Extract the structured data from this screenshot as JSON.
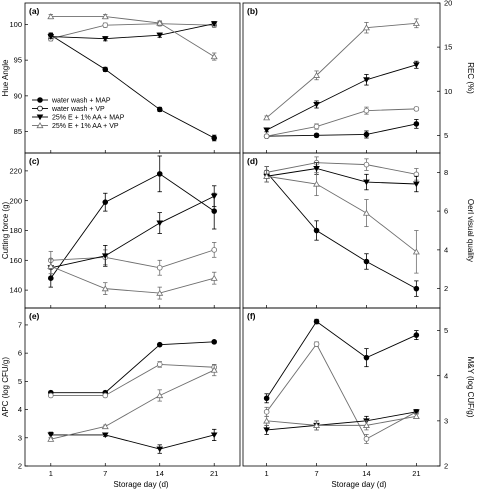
{
  "colors": {
    "black": "#000000",
    "gray": "#6e6e6e",
    "frame": "#000000"
  },
  "legend": {
    "placement": "top-left of panel (a)",
    "entries": [
      {
        "label": "water wash + MAP",
        "marker": "circle-filled",
        "color": "#000000"
      },
      {
        "label": "water wash + VP",
        "marker": "circle-open",
        "color": "#000000"
      },
      {
        "label": "25% E + 1% AA + MAP",
        "marker": "triangle-down-filled",
        "color": "#000000"
      },
      {
        "label": "25% E + 1% AA + VP",
        "marker": "triangle-up-open",
        "color": "#6e6e6e"
      }
    ]
  },
  "xlabels": {
    "left": "Storage day (d)",
    "right": "Storage day (d)"
  },
  "chart_data": [
    {
      "panel": "(a)",
      "type": "line",
      "side": "left",
      "ylabel": "Hue Angle",
      "x": [
        1,
        7,
        14,
        21
      ],
      "ylim": [
        82,
        103
      ],
      "yticks": [
        85,
        90,
        95,
        100
      ],
      "series": [
        {
          "name": "water wash + MAP",
          "marker": "circle-filled",
          "color": "#000000",
          "values": [
            98.5,
            93.7,
            88.1,
            84.1
          ],
          "err": [
            0.3,
            0.3,
            0.3,
            0.4
          ]
        },
        {
          "name": "water wash + VP",
          "marker": "circle-open",
          "color": "#6e6e6e",
          "values": [
            98.0,
            99.9,
            100.1,
            99.9
          ],
          "err": [
            0.3,
            0.3,
            0.3,
            0.3
          ]
        },
        {
          "name": "25% E + 1% AA + MAP",
          "marker": "triangle-down-filled",
          "color": "#000000",
          "values": [
            98.3,
            98.0,
            98.5,
            100.1
          ],
          "err": [
            0.3,
            0.3,
            0.3,
            0.3
          ]
        },
        {
          "name": "25% E + 1% AA + VP",
          "marker": "triangle-up-open",
          "color": "#6e6e6e",
          "values": [
            101.1,
            101.1,
            100.2,
            95.5
          ],
          "err": [
            0.3,
            0.3,
            0.3,
            0.5
          ]
        }
      ]
    },
    {
      "panel": "(b)",
      "type": "line",
      "side": "right",
      "ylabel": "REC (%)",
      "x": [
        1,
        7,
        14,
        21
      ],
      "ylim": [
        3,
        20
      ],
      "yticks": [
        5,
        10,
        15,
        20
      ],
      "series": [
        {
          "name": "water wash + MAP",
          "marker": "circle-filled",
          "color": "#000000",
          "values": [
            4.9,
            5.0,
            5.1,
            6.3
          ],
          "err": [
            0.1,
            0.2,
            0.4,
            0.5
          ]
        },
        {
          "name": "water wash + VP",
          "marker": "circle-open",
          "color": "#6e6e6e",
          "values": [
            4.9,
            6.0,
            7.8,
            8.0
          ],
          "err": [
            0.1,
            0.3,
            0.4,
            0.2
          ]
        },
        {
          "name": "25% E + 1% AA + MAP",
          "marker": "triangle-down-filled",
          "color": "#000000",
          "values": [
            5.6,
            8.5,
            11.3,
            13.0
          ],
          "err": [
            0.2,
            0.4,
            0.6,
            0.4
          ]
        },
        {
          "name": "25% E + 1% AA + VP",
          "marker": "triangle-up-open",
          "color": "#6e6e6e",
          "values": [
            7.0,
            11.8,
            17.2,
            17.7
          ],
          "err": [
            0.2,
            0.5,
            0.6,
            0.5
          ]
        }
      ]
    },
    {
      "panel": "(c)",
      "type": "line",
      "side": "left",
      "ylabel": "Cutting force (g)",
      "x": [
        1,
        7,
        14,
        21
      ],
      "ylim": [
        128,
        232
      ],
      "yticks": [
        140,
        160,
        180,
        200,
        220
      ],
      "series": [
        {
          "name": "water wash + MAP",
          "marker": "circle-filled",
          "color": "#000000",
          "values": [
            148,
            199,
            218,
            193
          ],
          "err": [
            6,
            6,
            12,
            12
          ]
        },
        {
          "name": "water wash + VP",
          "marker": "circle-open",
          "color": "#6e6e6e",
          "values": [
            160,
            162,
            155,
            167
          ],
          "err": [
            6,
            5,
            5,
            5
          ]
        },
        {
          "name": "25% E + 1% AA + MAP",
          "marker": "triangle-down-filled",
          "color": "#000000",
          "values": [
            155,
            163,
            185,
            203
          ],
          "err": [
            6,
            7,
            7,
            7
          ]
        },
        {
          "name": "25% E + 1% AA + VP",
          "marker": "triangle-up-open",
          "color": "#6e6e6e",
          "values": [
            156,
            141,
            138,
            148
          ],
          "err": [
            5,
            4,
            4,
            4
          ]
        }
      ]
    },
    {
      "panel": "(d)",
      "type": "line",
      "side": "right",
      "ylabel": "Oerl visual quality",
      "x": [
        1,
        7,
        14,
        21
      ],
      "ylim": [
        1,
        9
      ],
      "yticks": [
        2,
        4,
        6,
        8
      ],
      "series": [
        {
          "name": "water wash + MAP",
          "marker": "circle-filled",
          "color": "#000000",
          "values": [
            8.0,
            5.0,
            3.4,
            2.0
          ],
          "err": [
            0.3,
            0.5,
            0.4,
            0.4
          ]
        },
        {
          "name": "water wash + VP",
          "marker": "circle-open",
          "color": "#6e6e6e",
          "values": [
            8.0,
            8.5,
            8.4,
            7.9
          ],
          "err": [
            0.3,
            0.3,
            0.3,
            0.3
          ]
        },
        {
          "name": "25% E + 1% AA + MAP",
          "marker": "triangle-down-filled",
          "color": "#000000",
          "values": [
            7.8,
            8.2,
            7.5,
            7.4
          ],
          "err": [
            0.3,
            0.3,
            0.4,
            0.4
          ]
        },
        {
          "name": "25% E + 1% AA + VP",
          "marker": "triangle-up-open",
          "color": "#6e6e6e",
          "values": [
            7.8,
            7.4,
            5.9,
            3.9
          ],
          "err": [
            0.3,
            0.6,
            0.7,
            1.1
          ]
        }
      ]
    },
    {
      "panel": "(e)",
      "type": "line",
      "side": "left",
      "ylabel": "APC (log CFU/g)",
      "x": [
        1,
        7,
        14,
        21
      ],
      "ylim": [
        2,
        7.6
      ],
      "yticks": [
        2,
        3,
        4,
        5,
        6,
        7
      ],
      "series": [
        {
          "name": "water wash + MAP",
          "marker": "circle-filled",
          "color": "#000000",
          "values": [
            4.6,
            4.6,
            6.3,
            6.4
          ],
          "err": [
            0.05,
            0.05,
            0.05,
            0.05
          ]
        },
        {
          "name": "water wash + VP",
          "marker": "circle-open",
          "color": "#6e6e6e",
          "values": [
            4.5,
            4.5,
            5.6,
            5.5
          ],
          "err": [
            0.05,
            0.05,
            0.1,
            0.1
          ]
        },
        {
          "name": "25% E + 1% AA + MAP",
          "marker": "triangle-down-filled",
          "color": "#000000",
          "values": [
            3.1,
            3.1,
            2.6,
            3.1
          ],
          "err": [
            0.1,
            0.05,
            0.15,
            0.2
          ]
        },
        {
          "name": "25% E + 1% AA + VP",
          "marker": "triangle-up-open",
          "color": "#6e6e6e",
          "values": [
            2.95,
            3.4,
            4.5,
            5.4
          ],
          "err": [
            0.05,
            0.05,
            0.2,
            0.2
          ]
        }
      ]
    },
    {
      "panel": "(f)",
      "type": "line",
      "side": "right",
      "ylabel": "M&Y (log CUF/g)",
      "x": [
        1,
        7,
        14,
        21
      ],
      "ylim": [
        2,
        5.5
      ],
      "yticks": [
        2,
        3,
        4,
        5
      ],
      "series": [
        {
          "name": "water wash + MAP",
          "marker": "circle-filled",
          "color": "#000000",
          "values": [
            3.5,
            5.2,
            4.4,
            4.9
          ],
          "err": [
            0.1,
            0.05,
            0.2,
            0.1
          ]
        },
        {
          "name": "water wash + VP",
          "marker": "circle-open",
          "color": "#6e6e6e",
          "values": [
            3.2,
            4.7,
            2.6,
            3.2
          ],
          "err": [
            0.1,
            0.05,
            0.1,
            0.05
          ]
        },
        {
          "name": "25% E + 1% AA + MAP",
          "marker": "triangle-down-filled",
          "color": "#000000",
          "values": [
            2.8,
            2.9,
            3.0,
            3.2
          ],
          "err": [
            0.1,
            0.1,
            0.1,
            0.05
          ]
        },
        {
          "name": "25% E + 1% AA + VP",
          "marker": "triangle-up-open",
          "color": "#6e6e6e",
          "values": [
            3.0,
            2.9,
            2.9,
            3.1
          ],
          "err": [
            0.1,
            0.1,
            0.1,
            0.05
          ]
        }
      ]
    }
  ]
}
